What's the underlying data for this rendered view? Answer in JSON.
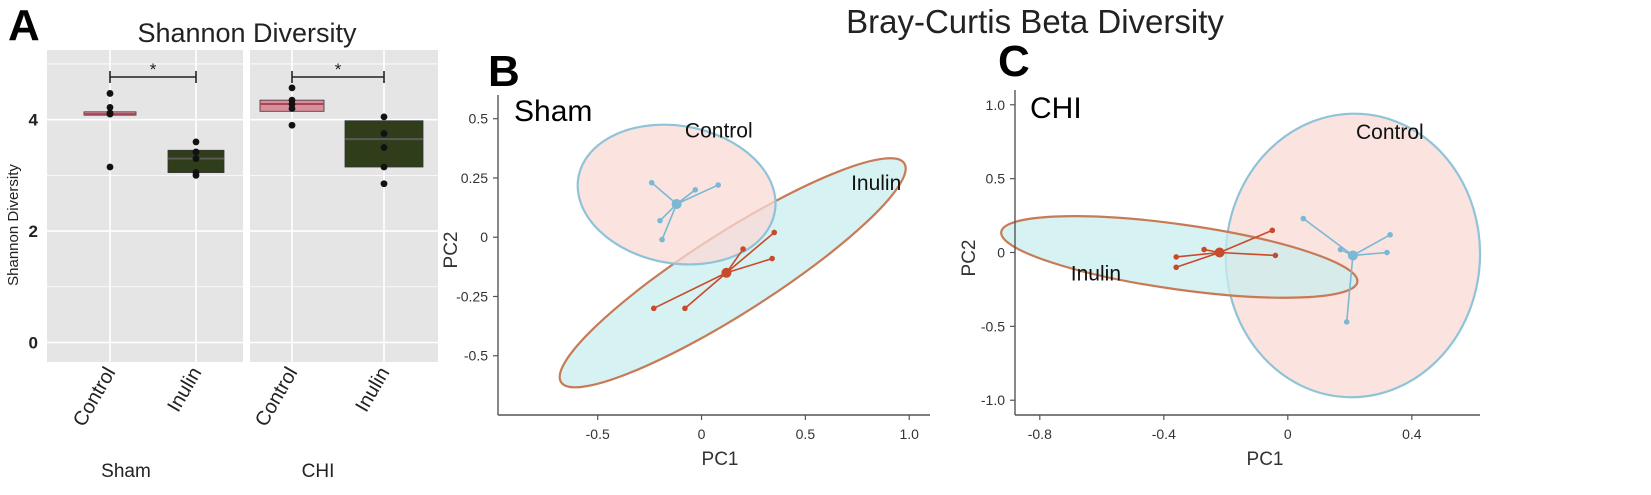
{
  "figure": {
    "title": "Bray-Curtis Beta Diversity"
  },
  "colors": {
    "panel_bg": "#e5e5e5",
    "grid": "#ffffff",
    "control_box": "#d98f9a",
    "inulin_box": "#2f3d1b",
    "control_fill": "#f9d9d6",
    "inulin_fill": "#c9eeee",
    "control_ellipse_stroke": "#8fc3d8",
    "inulin_ellipse_stroke": "#c77a55",
    "control_points": "#7ab8d4",
    "inulin_points": "#c94a2a"
  },
  "chart_data": [
    {
      "panel_label": "A",
      "type": "box",
      "title": "Shannon Diversity",
      "ylabel": "Shannon Diversity",
      "ylim": [
        -0.35,
        5.25
      ],
      "yticks": [
        0,
        2,
        4
      ],
      "ytick_labels": [
        "0",
        "2",
        "4"
      ],
      "facets": [
        {
          "label": "Sham",
          "significance": "*",
          "groups": [
            {
              "name": "Control",
              "q1": 4.08,
              "median": 4.1,
              "q3": 4.14,
              "points": [
                4.47,
                4.22,
                4.12,
                4.1,
                3.15
              ]
            },
            {
              "name": "Inulin",
              "q1": 3.05,
              "median": 3.3,
              "q3": 3.45,
              "points": [
                3.6,
                3.42,
                3.3,
                3.05,
                3.0
              ]
            }
          ]
        },
        {
          "label": "CHI",
          "significance": "*",
          "groups": [
            {
              "name": "Control",
              "q1": 4.15,
              "median": 4.28,
              "q3": 4.35,
              "points": [
                4.57,
                4.35,
                4.28,
                4.2,
                3.9
              ]
            },
            {
              "name": "Inulin",
              "q1": 3.15,
              "median": 3.65,
              "q3": 3.98,
              "points": [
                4.05,
                3.75,
                3.5,
                3.15,
                2.85
              ]
            }
          ]
        }
      ]
    },
    {
      "panel_label": "B",
      "type": "scatter",
      "subtitle": "Sham",
      "xlabel": "PC1",
      "ylabel": "PC2",
      "xlim": [
        -0.98,
        1.1
      ],
      "ylim": [
        -0.75,
        0.6
      ],
      "xticks": [
        -0.5,
        0,
        0.5,
        1.0
      ],
      "xtick_labels": [
        "-0.5",
        "0",
        "0.5",
        "1.0"
      ],
      "yticks": [
        0.5,
        0.25,
        0,
        -0.25,
        -0.5
      ],
      "ytick_labels": [
        "0.5",
        "0.25",
        "0",
        "-0.25",
        "-0.5"
      ],
      "groups": [
        {
          "name": "Control",
          "label": "Control",
          "label_at": [
            -0.08,
            0.42
          ],
          "centroid": [
            -0.12,
            0.14
          ],
          "points": [
            [
              -0.24,
              0.23
            ],
            [
              -0.03,
              0.2
            ],
            [
              0.08,
              0.22
            ],
            [
              -0.2,
              0.07
            ],
            [
              -0.19,
              -0.01
            ]
          ],
          "ellipse": {
            "cx": -0.12,
            "cy": 0.18,
            "rx": 0.48,
            "ry": 0.29,
            "angle": -10
          }
        },
        {
          "name": "Inulin",
          "label": "Inulin",
          "label_at": [
            0.72,
            0.2
          ],
          "centroid": [
            0.12,
            -0.15
          ],
          "points": [
            [
              0.35,
              0.02
            ],
            [
              0.2,
              -0.05
            ],
            [
              0.34,
              -0.09
            ],
            [
              -0.23,
              -0.3
            ],
            [
              -0.08,
              -0.3
            ]
          ],
          "ellipse": {
            "cx": 0.15,
            "cy": -0.15,
            "rx": 0.98,
            "ry": 0.17,
            "angle": 32.5
          }
        }
      ]
    },
    {
      "panel_label": "C",
      "type": "scatter",
      "subtitle": "CHI",
      "xlabel": "PC1",
      "ylabel": "PC2",
      "xlim": [
        -0.88,
        0.62
      ],
      "ylim": [
        -1.1,
        1.1
      ],
      "xticks": [
        -0.8,
        -0.4,
        0,
        0.4
      ],
      "xtick_labels": [
        "-0.8",
        "-0.4",
        "0",
        "0.4"
      ],
      "yticks": [
        1.0,
        0.5,
        0,
        -0.5,
        -1.0
      ],
      "ytick_labels": [
        "1.0",
        "0.5",
        "0",
        "-0.5",
        "-1.0"
      ],
      "groups": [
        {
          "name": "Control",
          "label": "Control",
          "label_at": [
            0.22,
            0.77
          ],
          "centroid": [
            0.21,
            -0.02
          ],
          "points": [
            [
              0.05,
              0.23
            ],
            [
              0.17,
              0.02
            ],
            [
              0.33,
              0.12
            ],
            [
              0.32,
              0.0
            ],
            [
              0.19,
              -0.47
            ]
          ],
          "ellipse": {
            "cx": 0.21,
            "cy": -0.02,
            "rx": 0.41,
            "ry": 0.96,
            "angle": -3
          }
        },
        {
          "name": "Inulin",
          "label": "Inulin",
          "label_at": [
            -0.7,
            -0.19
          ],
          "centroid": [
            -0.22,
            0.0
          ],
          "points": [
            [
              -0.36,
              -0.03
            ],
            [
              -0.36,
              -0.1
            ],
            [
              -0.27,
              0.02
            ],
            [
              -0.05,
              0.15
            ],
            [
              -0.04,
              -0.02
            ]
          ],
          "ellipse": {
            "cx": -0.35,
            "cy": -0.03,
            "rx": 0.58,
            "ry": 0.22,
            "angle": -8
          }
        }
      ]
    }
  ]
}
